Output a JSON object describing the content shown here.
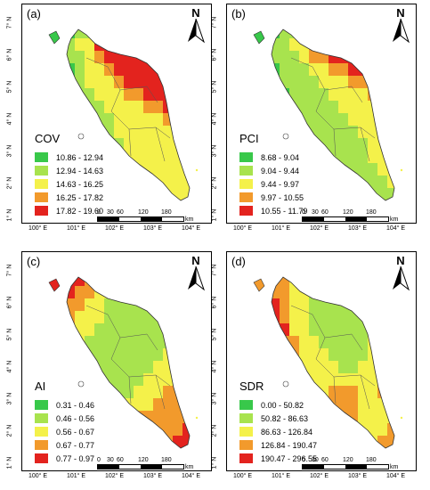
{
  "panels": [
    {
      "label": "(a)",
      "variable": "COV",
      "legend": [
        "10.86 - 12.94",
        "12.94 - 14.63",
        "14.63 - 16.25",
        "16.25 - 17.82",
        "17.82 - 19.60"
      ]
    },
    {
      "label": "(b)",
      "variable": "PCI",
      "legend": [
        "8.68 - 9.04",
        "9.04 - 9.44",
        "9.44 - 9.97",
        "9.97 - 10.55",
        "10.55 - 11.79"
      ]
    },
    {
      "label": "(c)",
      "variable": "AI",
      "legend": [
        "0.31 - 0.46",
        "0.46 - 0.56",
        "0.56 - 0.67",
        "0.67 - 0.77",
        "0.77 - 0.97"
      ]
    },
    {
      "label": "(d)",
      "variable": "SDR",
      "legend": [
        "0.00 - 50.82",
        "50.82 - 86.63",
        "86.63 - 126.84",
        "126.84 - 190.47",
        "190.47 - 296.55"
      ]
    }
  ],
  "class_colors": [
    "#38c84a",
    "#a8e34e",
    "#f4f14a",
    "#f29a2c",
    "#e3231e"
  ],
  "north_arrow": "N",
  "scale_bar": {
    "ticks": [
      "0",
      "30",
      "60",
      "120",
      "180"
    ],
    "unit": "km"
  },
  "x_ticks": [
    "100° E",
    "101° E",
    "102° E",
    "103° E",
    "104° E"
  ],
  "y_ticks": [
    "7° N",
    "6° N",
    "5° N",
    "4° N",
    "3° N",
    "2° N",
    "1° N"
  ]
}
